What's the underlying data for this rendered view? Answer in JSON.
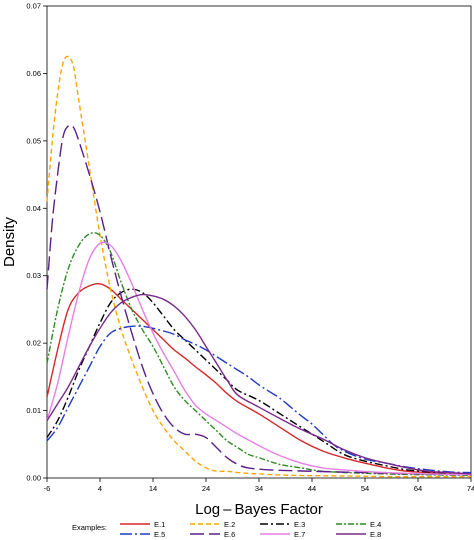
{
  "chart_data": {
    "type": "line",
    "xlabel": "Log – Bayes Factor",
    "ylabel": "Density",
    "xlim": [
      -6,
      74
    ],
    "ylim": [
      0,
      0.07
    ],
    "x_ticks": [
      "-6",
      "4",
      "14",
      "24",
      "34",
      "44",
      "54",
      "64",
      "74"
    ],
    "y_ticks": [
      "0.00",
      "0.01",
      "0.02",
      "0.03",
      "0.04",
      "0.05",
      "0.06",
      "0.07"
    ],
    "legend_title": "Examples:",
    "legend_placement": "bottom",
    "grid": false,
    "series": [
      {
        "name": "E.1",
        "color": "#d62728",
        "dash": "",
        "points": [
          [
            -6,
            0.012
          ],
          [
            -4,
            0.019
          ],
          [
            -2,
            0.025
          ],
          [
            0,
            0.0275
          ],
          [
            2,
            0.0285
          ],
          [
            4,
            0.0288
          ],
          [
            6,
            0.028
          ],
          [
            8,
            0.0265
          ],
          [
            10,
            0.025
          ],
          [
            12,
            0.0235
          ],
          [
            14,
            0.022
          ],
          [
            16,
            0.0205
          ],
          [
            18,
            0.019
          ],
          [
            20,
            0.0178
          ],
          [
            22,
            0.0165
          ],
          [
            24,
            0.0153
          ],
          [
            26,
            0.014
          ],
          [
            28,
            0.0125
          ],
          [
            30,
            0.0113
          ],
          [
            34,
            0.0095
          ],
          [
            38,
            0.0075
          ],
          [
            42,
            0.0055
          ],
          [
            46,
            0.004
          ],
          [
            50,
            0.003
          ],
          [
            54,
            0.0022
          ],
          [
            58,
            0.0015
          ],
          [
            62,
            0.001
          ],
          [
            66,
            0.0008
          ],
          [
            70,
            0.0006
          ],
          [
            74,
            0.0005
          ]
        ]
      },
      {
        "name": "E.2",
        "color": "#ffa500",
        "dash": "5,3",
        "points": [
          [
            -6,
            0.041
          ],
          [
            -5,
            0.05
          ],
          [
            -4,
            0.057
          ],
          [
            -3,
            0.0615
          ],
          [
            -2,
            0.0625
          ],
          [
            -1,
            0.061
          ],
          [
            0,
            0.056
          ],
          [
            2,
            0.046
          ],
          [
            4,
            0.036
          ],
          [
            6,
            0.028
          ],
          [
            8,
            0.022
          ],
          [
            10,
            0.0175
          ],
          [
            12,
            0.0135
          ],
          [
            14,
            0.01
          ],
          [
            16,
            0.0075
          ],
          [
            18,
            0.0055
          ],
          [
            20,
            0.004
          ],
          [
            22,
            0.0025
          ],
          [
            24,
            0.0015
          ],
          [
            26,
            0.001
          ],
          [
            28,
            0.001
          ],
          [
            30,
            0.0008
          ],
          [
            34,
            0.0006
          ],
          [
            40,
            0.0004
          ],
          [
            50,
            0.0003
          ],
          [
            60,
            0.0002
          ],
          [
            74,
            0.0002
          ]
        ]
      },
      {
        "name": "E.3",
        "color": "#000000",
        "dash": "8,3,2,3",
        "points": [
          [
            -6,
            0.006
          ],
          [
            -4,
            0.0085
          ],
          [
            -2,
            0.012
          ],
          [
            0,
            0.016
          ],
          [
            2,
            0.0195
          ],
          [
            4,
            0.023
          ],
          [
            6,
            0.026
          ],
          [
            8,
            0.0275
          ],
          [
            10,
            0.028
          ],
          [
            12,
            0.0275
          ],
          [
            14,
            0.026
          ],
          [
            16,
            0.024
          ],
          [
            18,
            0.022
          ],
          [
            20,
            0.0205
          ],
          [
            22,
            0.019
          ],
          [
            24,
            0.0175
          ],
          [
            26,
            0.016
          ],
          [
            28,
            0.0145
          ],
          [
            30,
            0.013
          ],
          [
            34,
            0.0115
          ],
          [
            38,
            0.0095
          ],
          [
            42,
            0.0075
          ],
          [
            46,
            0.0055
          ],
          [
            50,
            0.0035
          ],
          [
            54,
            0.0025
          ],
          [
            58,
            0.0018
          ],
          [
            62,
            0.0012
          ],
          [
            66,
            0.0009
          ],
          [
            70,
            0.0007
          ],
          [
            74,
            0.0006
          ]
        ]
      },
      {
        "name": "E.4",
        "color": "#2e8b22",
        "dash": "6,2,2,2",
        "points": [
          [
            -6,
            0.017
          ],
          [
            -4,
            0.025
          ],
          [
            -2,
            0.031
          ],
          [
            0,
            0.0345
          ],
          [
            2,
            0.0362
          ],
          [
            4,
            0.036
          ],
          [
            6,
            0.0335
          ],
          [
            8,
            0.029
          ],
          [
            10,
            0.025
          ],
          [
            12,
            0.022
          ],
          [
            14,
            0.0195
          ],
          [
            16,
            0.0165
          ],
          [
            18,
            0.0135
          ],
          [
            20,
            0.0115
          ],
          [
            22,
            0.01
          ],
          [
            24,
            0.0085
          ],
          [
            26,
            0.007
          ],
          [
            28,
            0.0055
          ],
          [
            30,
            0.0045
          ],
          [
            32,
            0.0035
          ],
          [
            34,
            0.003
          ],
          [
            38,
            0.002
          ],
          [
            42,
            0.0015
          ],
          [
            46,
            0.001
          ],
          [
            54,
            0.0007
          ],
          [
            64,
            0.0005
          ],
          [
            74,
            0.0004
          ]
        ]
      },
      {
        "name": "E.5",
        "color": "#1f3bc2",
        "dash": "12,3,2,3",
        "points": [
          [
            -6,
            0.0055
          ],
          [
            -4,
            0.0075
          ],
          [
            -2,
            0.0105
          ],
          [
            0,
            0.0135
          ],
          [
            2,
            0.0165
          ],
          [
            4,
            0.0195
          ],
          [
            6,
            0.0215
          ],
          [
            8,
            0.0222
          ],
          [
            10,
            0.0225
          ],
          [
            12,
            0.0225
          ],
          [
            14,
            0.0222
          ],
          [
            16,
            0.0218
          ],
          [
            18,
            0.0213
          ],
          [
            20,
            0.0205
          ],
          [
            22,
            0.0198
          ],
          [
            24,
            0.019
          ],
          [
            26,
            0.018
          ],
          [
            28,
            0.017
          ],
          [
            30,
            0.016
          ],
          [
            32,
            0.015
          ],
          [
            34,
            0.0138
          ],
          [
            36,
            0.0128
          ],
          [
            38,
            0.0118
          ],
          [
            40,
            0.0105
          ],
          [
            42,
            0.0092
          ],
          [
            44,
            0.008
          ],
          [
            46,
            0.0065
          ],
          [
            48,
            0.005
          ],
          [
            50,
            0.004
          ],
          [
            54,
            0.0028
          ],
          [
            58,
            0.0022
          ],
          [
            62,
            0.0016
          ],
          [
            66,
            0.0012
          ],
          [
            70,
            0.0009
          ],
          [
            74,
            0.0008
          ]
        ]
      },
      {
        "name": "E.6",
        "color": "#5b1f8a",
        "dash": "14,5",
        "points": [
          [
            -6,
            0.028
          ],
          [
            -5,
            0.038
          ],
          [
            -4,
            0.045
          ],
          [
            -3,
            0.0505
          ],
          [
            -2,
            0.0522
          ],
          [
            -1,
            0.052
          ],
          [
            0,
            0.05
          ],
          [
            2,
            0.045
          ],
          [
            4,
            0.0395
          ],
          [
            6,
            0.033
          ],
          [
            8,
            0.027
          ],
          [
            10,
            0.0215
          ],
          [
            12,
            0.0165
          ],
          [
            14,
            0.0125
          ],
          [
            16,
            0.0095
          ],
          [
            18,
            0.0075
          ],
          [
            20,
            0.0065
          ],
          [
            22,
            0.0065
          ],
          [
            24,
            0.006
          ],
          [
            26,
            0.0045
          ],
          [
            28,
            0.003
          ],
          [
            30,
            0.002
          ],
          [
            32,
            0.0015
          ],
          [
            36,
            0.0012
          ],
          [
            44,
            0.001
          ],
          [
            54,
            0.0008
          ],
          [
            64,
            0.0006
          ],
          [
            74,
            0.0005
          ]
        ]
      },
      {
        "name": "E.7",
        "color": "#e580e5",
        "dash": "",
        "points": [
          [
            -6,
            0.0085
          ],
          [
            -4,
            0.014
          ],
          [
            -2,
            0.021
          ],
          [
            0,
            0.0275
          ],
          [
            2,
            0.0325
          ],
          [
            4,
            0.0348
          ],
          [
            6,
            0.0345
          ],
          [
            8,
            0.0322
          ],
          [
            10,
            0.0288
          ],
          [
            12,
            0.025
          ],
          [
            14,
            0.0215
          ],
          [
            16,
            0.0185
          ],
          [
            18,
            0.0158
          ],
          [
            20,
            0.013
          ],
          [
            22,
            0.0108
          ],
          [
            24,
            0.0095
          ],
          [
            26,
            0.0085
          ],
          [
            28,
            0.0075
          ],
          [
            30,
            0.0065
          ],
          [
            34,
            0.0048
          ],
          [
            38,
            0.0033
          ],
          [
            42,
            0.0022
          ],
          [
            46,
            0.0015
          ],
          [
            50,
            0.0012
          ],
          [
            58,
            0.0008
          ],
          [
            66,
            0.0006
          ],
          [
            74,
            0.0005
          ]
        ]
      },
      {
        "name": "E.8",
        "color": "#7a2a8c",
        "dash": "",
        "points": [
          [
            -6,
            0.0085
          ],
          [
            -4,
            0.011
          ],
          [
            -2,
            0.0135
          ],
          [
            0,
            0.0165
          ],
          [
            2,
            0.0195
          ],
          [
            4,
            0.0222
          ],
          [
            6,
            0.0245
          ],
          [
            8,
            0.026
          ],
          [
            10,
            0.0268
          ],
          [
            12,
            0.0272
          ],
          [
            14,
            0.027
          ],
          [
            16,
            0.0265
          ],
          [
            18,
            0.0255
          ],
          [
            20,
            0.024
          ],
          [
            22,
            0.022
          ],
          [
            24,
            0.0195
          ],
          [
            26,
            0.017
          ],
          [
            28,
            0.0145
          ],
          [
            30,
            0.0123
          ],
          [
            34,
            0.0105
          ],
          [
            38,
            0.0088
          ],
          [
            42,
            0.0072
          ],
          [
            46,
            0.0058
          ],
          [
            50,
            0.0042
          ],
          [
            54,
            0.003
          ],
          [
            58,
            0.0022
          ],
          [
            62,
            0.0015
          ],
          [
            66,
            0.001
          ],
          [
            70,
            0.0008
          ],
          [
            74,
            0.0006
          ]
        ]
      }
    ]
  }
}
